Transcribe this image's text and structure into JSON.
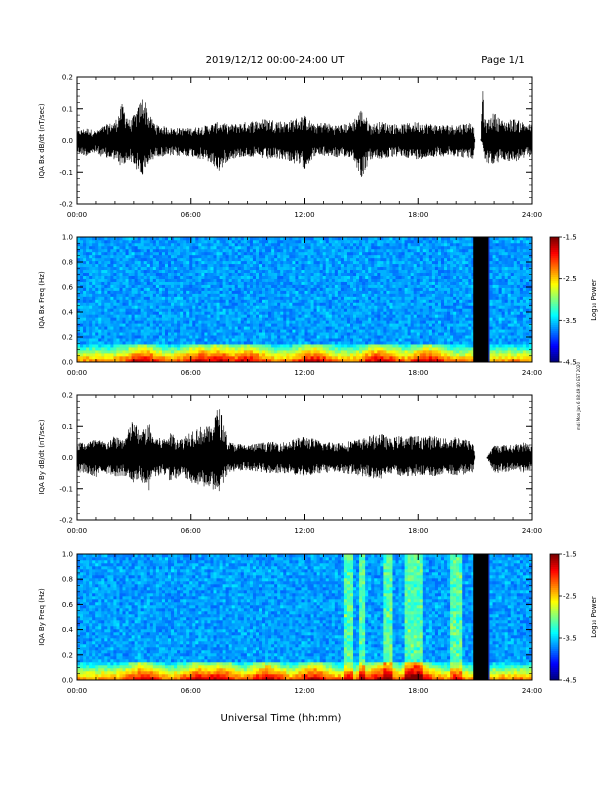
{
  "header": {
    "title": "2019/12/12  00:00-24:00 UT",
    "page": "Page 1/1"
  },
  "side_note": "mdi Mon Jan 6 08:49:40 EST 2020",
  "chart_data": [
    {
      "type": "line",
      "title": "",
      "ylabel": "IQA Bx dB/dt (nT/sec)",
      "xlabel": "",
      "x_ticks": [
        "00:00",
        "06:00",
        "12:00",
        "18:00",
        "24:00"
      ],
      "xlim": [
        0,
        24
      ],
      "ylim": [
        -0.2,
        0.2
      ],
      "y_ticks": [
        "-0.2",
        "-0.1",
        "0.0",
        "0.1",
        "0.2"
      ],
      "series": [
        {
          "x": [
            0,
            0.5,
            1,
            1.5,
            2,
            2.4,
            2.8,
            3.2,
            3.5,
            3.8,
            4.2,
            5,
            6,
            7,
            7.5,
            8,
            9,
            10,
            11,
            12,
            12.5,
            13,
            13.5,
            14,
            14.5,
            15,
            15.5,
            16,
            17,
            18,
            19,
            20,
            20.9,
            21.0,
            21.3,
            21.4,
            21.5,
            21.6,
            22,
            22.5,
            23,
            23.5,
            24
          ],
          "y_max": [
            0.03,
            0.04,
            0.03,
            0.05,
            0.06,
            0.12,
            0.06,
            0.1,
            0.15,
            0.08,
            0.05,
            0.04,
            0.04,
            0.05,
            0.06,
            0.05,
            0.06,
            0.07,
            0.06,
            0.08,
            0.05,
            0.06,
            0.05,
            0.05,
            0.06,
            0.1,
            0.05,
            0.06,
            0.05,
            0.06,
            0.05,
            0.05,
            0.06,
            0.0,
            0.0,
            0.2,
            0.07,
            0.06,
            0.09,
            0.06,
            0.07,
            0.06,
            0.05
          ],
          "y_min": [
            -0.04,
            -0.05,
            -0.04,
            -0.06,
            -0.06,
            -0.09,
            -0.06,
            -0.1,
            -0.12,
            -0.07,
            -0.05,
            -0.05,
            -0.05,
            -0.07,
            -0.1,
            -0.06,
            -0.05,
            -0.06,
            -0.06,
            -0.09,
            -0.05,
            -0.05,
            -0.05,
            -0.06,
            -0.05,
            -0.12,
            -0.06,
            -0.06,
            -0.05,
            -0.06,
            -0.05,
            -0.05,
            -0.06,
            0.0,
            0.0,
            -0.01,
            -0.06,
            -0.07,
            -0.08,
            -0.06,
            -0.07,
            -0.06,
            -0.05
          ]
        }
      ]
    },
    {
      "type": "heatmap",
      "title": "",
      "ylabel": "IQA Bx Freq (Hz)",
      "x_ticks": [
        "00:00",
        "06:00",
        "12:00",
        "18:00",
        "24:00"
      ],
      "xlim": [
        0,
        24
      ],
      "ylim": [
        0.0,
        1.0
      ],
      "y_ticks": [
        "0.0",
        "0.2",
        "0.4",
        "0.6",
        "0.8",
        "1.0"
      ],
      "colorbar": {
        "label": "Log₁₀ Power",
        "ticks": [
          "-1.5",
          "-2.5",
          "-3.5",
          "-4.5"
        ],
        "range": [
          -4.5,
          -1.5
        ]
      },
      "gap_hours": [
        20.9,
        21.7
      ],
      "low_freq_hotspots_hours": [
        3.5,
        6.5,
        7.5,
        9,
        12.5,
        16,
        18.5
      ]
    },
    {
      "type": "line",
      "title": "",
      "ylabel": "IQA By dB/dt (nT/sec)",
      "x_ticks": [
        "00:00",
        "06:00",
        "12:00",
        "18:00",
        "24:00"
      ],
      "xlim": [
        0,
        24
      ],
      "ylim": [
        -0.2,
        0.2
      ],
      "y_ticks": [
        "-0.2",
        "-0.1",
        "0.0",
        "0.1",
        "0.2"
      ],
      "series": [
        {
          "x": [
            0,
            0.5,
            1,
            1.5,
            2,
            2.5,
            3,
            3.3,
            3.8,
            4,
            4.5,
            5,
            5.5,
            6,
            6.5,
            7,
            7.5,
            8,
            9,
            10,
            11,
            12,
            13,
            14,
            15,
            16,
            16.5,
            17,
            18,
            19,
            19.5,
            20,
            20.9,
            21.0,
            21.6,
            22,
            22.5,
            23,
            23.5,
            24
          ],
          "y_max": [
            0.05,
            0.05,
            0.06,
            0.05,
            0.07,
            0.06,
            0.13,
            0.08,
            0.11,
            0.07,
            0.06,
            0.08,
            0.06,
            0.09,
            0.1,
            0.1,
            0.17,
            0.05,
            0.04,
            0.05,
            0.05,
            0.07,
            0.05,
            0.05,
            0.06,
            0.08,
            0.06,
            0.07,
            0.07,
            0.07,
            0.06,
            0.07,
            0.05,
            0.0,
            0.0,
            0.04,
            0.04,
            0.04,
            0.05,
            0.04
          ],
          "y_min": [
            -0.05,
            -0.05,
            -0.07,
            -0.05,
            -0.06,
            -0.06,
            -0.08,
            -0.07,
            -0.11,
            -0.07,
            -0.05,
            -0.08,
            -0.06,
            -0.08,
            -0.09,
            -0.1,
            -0.11,
            -0.05,
            -0.04,
            -0.05,
            -0.05,
            -0.06,
            -0.05,
            -0.05,
            -0.06,
            -0.07,
            -0.05,
            -0.06,
            -0.06,
            -0.06,
            -0.05,
            -0.06,
            -0.05,
            0.0,
            0.0,
            -0.05,
            -0.05,
            -0.04,
            -0.05,
            -0.04
          ]
        }
      ]
    },
    {
      "type": "heatmap",
      "title": "",
      "ylabel": "IQA By Freq (Hz)",
      "x_ticks": [
        "00:00",
        "06:00",
        "12:00",
        "18:00",
        "24:00"
      ],
      "xlim": [
        0,
        24
      ],
      "ylim": [
        0.0,
        1.0
      ],
      "y_ticks": [
        "0.0",
        "0.2",
        "0.4",
        "0.6",
        "0.8",
        "1.0"
      ],
      "colorbar": {
        "label": "Log₁₀ Power",
        "ticks": [
          "-1.5",
          "-2.5",
          "-3.5",
          "-4.5"
        ],
        "range": [
          -4.5,
          -1.5
        ]
      },
      "gap_hours": [
        20.9,
        21.7
      ],
      "bright_bands_hours": [
        14.3,
        15.0,
        16.3,
        16.5,
        17.5,
        17.7,
        18.0,
        19.8,
        20.2
      ],
      "low_freq_hotspots_hours": [
        3.5,
        6.5,
        7.5,
        10,
        12.5,
        16,
        18
      ]
    }
  ],
  "footer": {
    "xlabel": "Universal Time (hh:mm)"
  },
  "colors": {
    "trace": "#000000",
    "heatmap_background": "#1a3ad8",
    "gap": "#000000"
  }
}
